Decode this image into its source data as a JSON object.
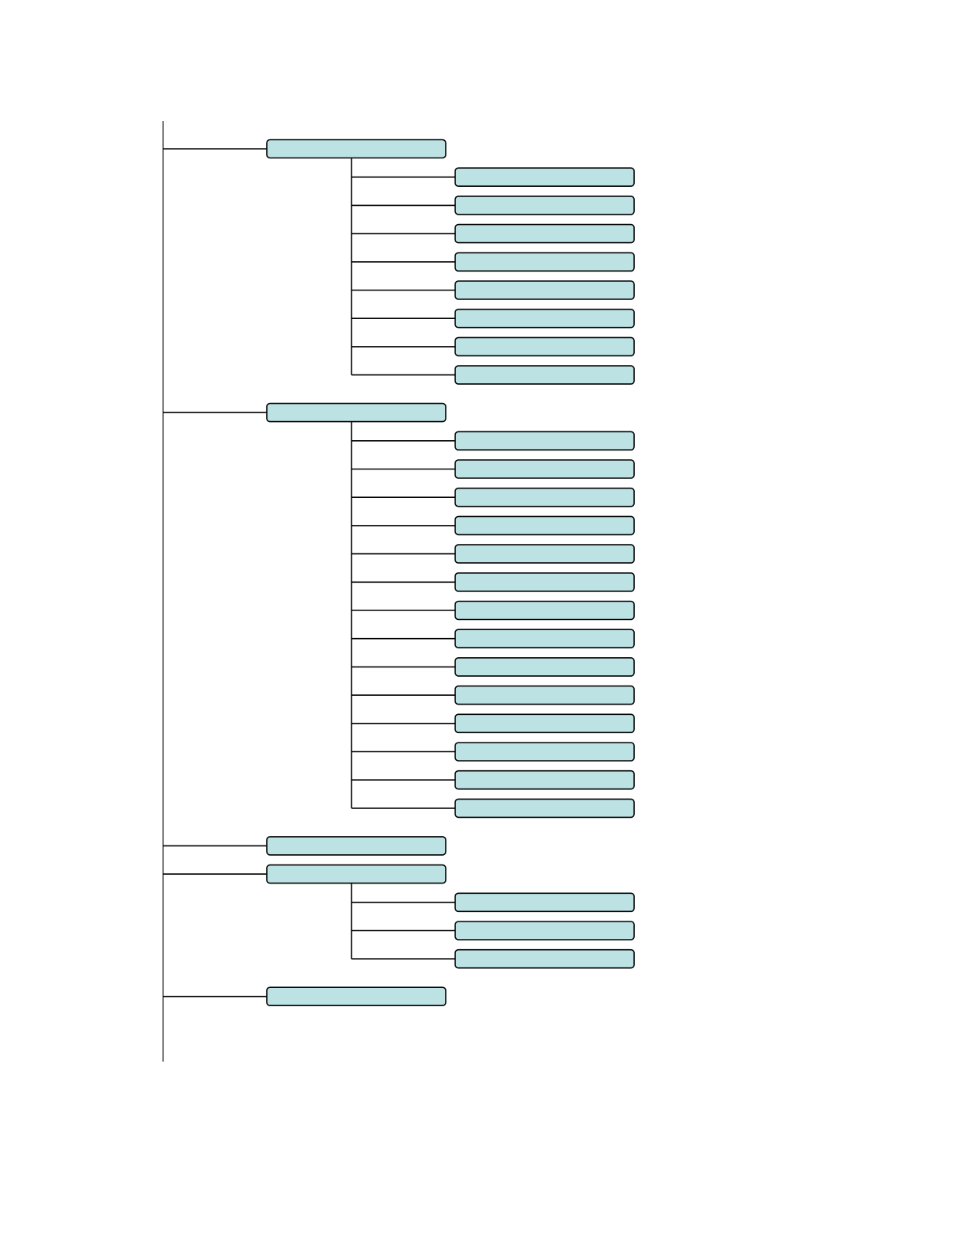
{
  "colors": {
    "box_fill": "#bde2e4",
    "box_stroke": "#000000",
    "line": "#000000",
    "background": "#ffffff"
  },
  "tree": {
    "groups": [
      {
        "label": "",
        "children": [
          "",
          "",
          "",
          "",
          "",
          "",
          "",
          ""
        ]
      },
      {
        "label": "",
        "children": [
          "",
          "",
          "",
          "",
          "",
          "",
          "",
          "",
          "",
          "",
          "",
          "",
          "",
          ""
        ]
      },
      {
        "label": "",
        "children": []
      },
      {
        "label": "",
        "children": [
          "",
          "",
          ""
        ]
      },
      {
        "label": "",
        "children": []
      }
    ]
  }
}
